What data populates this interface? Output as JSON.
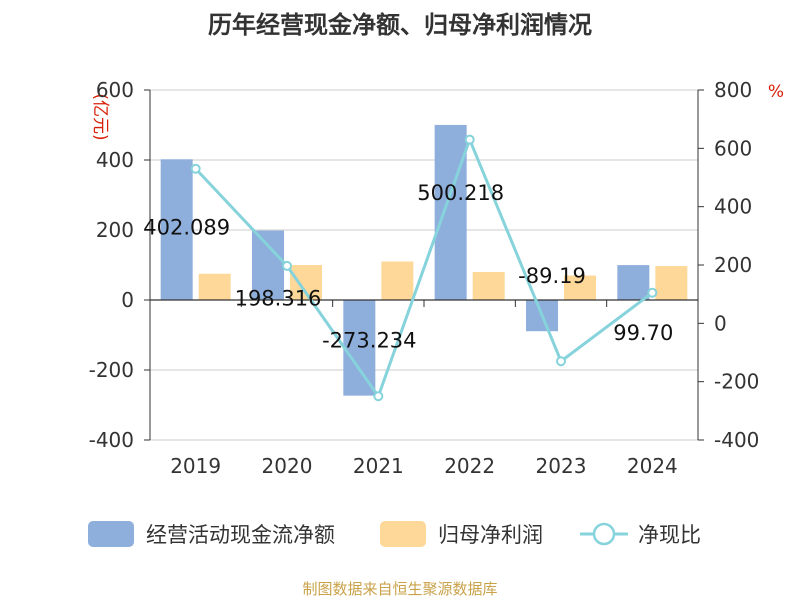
{
  "chart_data": {
    "type": "bar",
    "title": "历年经营现金净额、归母净利润情况",
    "categories": [
      "2019",
      "2020",
      "2021",
      "2022",
      "2023",
      "2024"
    ],
    "y_left": {
      "unit": "(亿元)",
      "ticks": [
        600,
        400,
        200,
        0,
        -200,
        -400
      ],
      "ylim": [
        -400,
        600
      ]
    },
    "y_right": {
      "unit": "%",
      "ticks": [
        800,
        600,
        400,
        200,
        0,
        -200,
        -400
      ],
      "ylim": [
        -400,
        800
      ]
    },
    "series": [
      {
        "name": "经营活动现金流净额",
        "type": "bar",
        "axis": "left",
        "color": "#8eaedc",
        "values": [
          402.089,
          198.316,
          -273.234,
          500.218,
          -89.19,
          99.7
        ],
        "labels": [
          "402.089",
          "198.316",
          "-273.234",
          "500.218",
          "-89.19",
          "99.70"
        ]
      },
      {
        "name": "归母净利润",
        "type": "bar",
        "axis": "left",
        "color": "#fdd898",
        "values": [
          75,
          100,
          110,
          80,
          70,
          97
        ]
      },
      {
        "name": "净现比",
        "type": "line",
        "axis": "right",
        "color": "#86d3dc",
        "values": [
          530,
          197,
          -250,
          630,
          -130,
          105
        ]
      }
    ],
    "grid": true,
    "legend_position": "bottom",
    "source": "制图数据来自恒生聚源数据库"
  }
}
